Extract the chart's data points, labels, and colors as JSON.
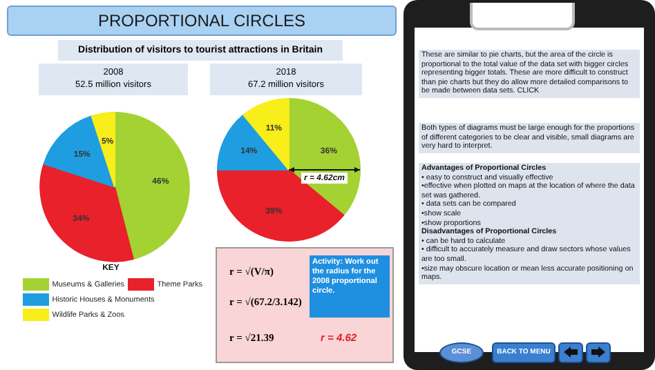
{
  "chart_data": [
    {
      "type": "pie",
      "title": "2008",
      "subtitle": "52.5 million visitors",
      "legend_title": "KEY",
      "legend": "bottom",
      "categories": [
        "Museums & Galleries",
        "Theme Parks",
        "Historic Houses & Monuments",
        "Wildlife Parks & Zoos"
      ],
      "values": [
        46,
        34,
        15,
        5
      ],
      "colors": [
        "#a4d233",
        "#e8212b",
        "#1e9ee0",
        "#f7ee1a"
      ],
      "value_labels": [
        "46%",
        "34%",
        "15%",
        "5%"
      ]
    },
    {
      "type": "pie",
      "title": "2018",
      "subtitle": "67.2 million visitors",
      "categories": [
        null,
        null,
        null,
        null
      ],
      "values": [
        36,
        39,
        14,
        11
      ],
      "colors": [
        "#a4d233",
        "#e8212b",
        "#1e9ee0",
        "#f7ee1a"
      ],
      "value_labels": [
        "36%",
        "39%",
        "14%",
        "11%"
      ],
      "annotations": [
        "r = 4.62cm"
      ]
    },
    {
      "type": "other",
      "title": "PROPORTIONAL CIRCLES",
      "subtitle": "Distribution of visitors to tourist attractions in Britain",
      "annotations": [
        "Activity: Work out the radius for the 2008 proportional circle.",
        "r = √(V/π)",
        "r = √(67.2/3.142)",
        "r = √21.39",
        "r = 4.62",
        "These are similar to pie charts, but the area of the circle is proportional to the total value of the data set with bigger circles representing bigger totals. These are more difficult to construct than pie charts but they do allow more detailed comparisons to be made between data sets. CLICK",
        "Both types of diagrams must be large enough for the proportions of different categories to be clear and visible, small diagrams are very hard to interpret.",
        "Advantages of Proportional Circles",
        "• easy to construct and visually effective",
        "•effective when plotted on maps at the location of where the data set was gathered.",
        "• data sets can be compared",
        "•show scale",
        "•show proportions",
        "Disadvantages of Proportional Circles",
        "• can be hard to calculate",
        "• difficult to accurately measure and draw sectors whose values are too small.",
        "•size may obscure location or mean less accurate positioning on maps.",
        "GCSE",
        "BACK TO MENU"
      ]
    }
  ]
}
